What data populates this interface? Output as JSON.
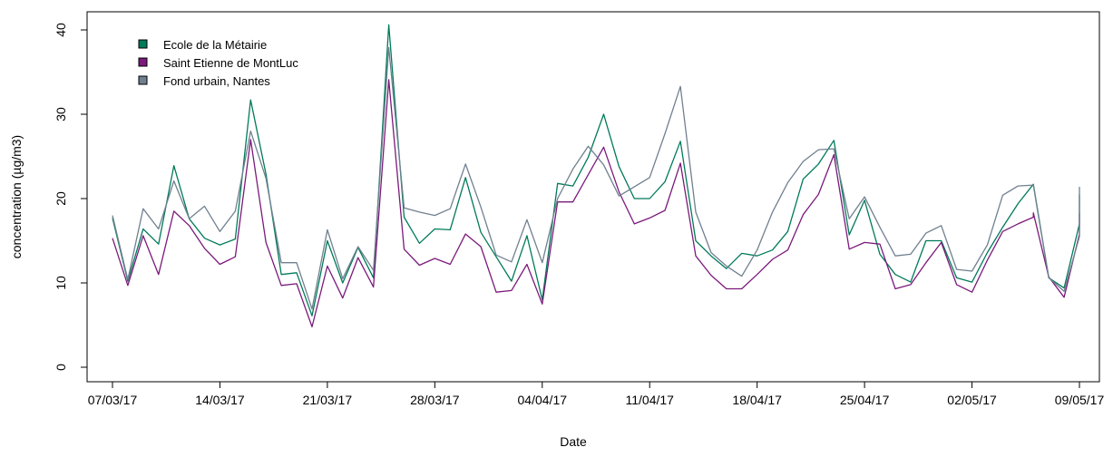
{
  "chart_data": {
    "type": "line",
    "xlabel": "Date",
    "ylabel": "concentration (µg/m3)",
    "x_start": "2017-03-07",
    "x_ticks": [
      "07/03/17",
      "14/03/17",
      "21/03/17",
      "28/03/17",
      "04/04/17",
      "11/04/17",
      "18/04/17",
      "25/04/17",
      "02/05/17",
      "09/05/17"
    ],
    "x_tick_dates": [
      "2017-03-07",
      "2017-03-14",
      "2017-03-21",
      "2017-03-28",
      "2017-04-04",
      "2017-04-11",
      "2017-04-18",
      "2017-04-25",
      "2017-05-02",
      "2017-05-09"
    ],
    "xlim": [
      "2017-03-07",
      "2017-05-09"
    ],
    "ylim": [
      0,
      40
    ],
    "y_ticks": [
      0,
      10,
      20,
      30,
      40
    ],
    "legend_position": "top-left",
    "grid": false,
    "series": [
      {
        "name": "Ecole de la Métairie",
        "color": "#007A5A",
        "values": [
          17.7,
          10.2,
          16.4,
          14.6,
          23.9,
          17.6,
          15.3,
          14.5,
          15.2,
          31.7,
          22.9,
          11.0,
          11.2,
          6.1,
          15.0,
          10.0,
          14.2,
          10.6,
          40.6,
          17.8,
          14.7,
          16.4,
          16.3,
          22.5,
          16.0,
          13.1,
          10.2,
          15.6,
          8.0,
          21.8,
          21.5,
          24.9,
          30.0,
          23.8,
          20.0,
          20.0,
          22.0,
          26.8,
          15.0,
          13.2,
          11.7,
          13.5,
          13.2,
          13.9,
          16.1,
          22.3,
          24.1,
          26.9,
          15.7,
          19.8,
          13.4,
          11.0,
          10.1,
          15.0,
          15.0,
          10.6,
          10.1,
          13.6,
          16.6,
          19.4,
          21.7,
          10.6,
          9.4,
          17.0,
          20.5
        ],
        "dates": [
          "2017-03-07",
          "2017-03-08",
          "2017-03-09",
          "2017-03-10",
          "2017-03-11",
          "2017-03-12",
          "2017-03-13",
          "2017-03-14",
          "2017-03-15",
          "2017-03-16",
          "2017-03-17",
          "2017-03-18",
          "2017-03-19",
          "2017-03-20",
          "2017-03-21",
          "2017-03-22",
          "2017-03-23",
          "2017-03-24",
          "2017-03-25",
          "2017-03-26",
          "2017-03-27",
          "2017-03-28",
          "2017-03-29",
          "2017-03-30",
          "2017-03-31",
          "2017-04-01",
          "2017-04-02",
          "2017-04-03",
          "2017-04-04",
          "2017-04-05",
          "2017-04-06",
          "2017-04-07",
          "2017-04-08",
          "2017-04-09",
          "2017-04-10",
          "2017-04-11",
          "2017-04-12",
          "2017-04-13",
          "2017-04-14",
          "2017-04-15",
          "2017-04-16",
          "2017-04-17",
          "2017-04-18",
          "2017-04-19",
          "2017-04-20",
          "2017-04-21",
          "2017-04-22",
          "2017-04-23",
          "2017-04-24",
          "2017-04-25",
          "2017-04-26",
          "2017-04-27",
          "2017-04-28",
          "2017-04-29",
          "2017-04-30",
          "2017-05-01",
          "2017-05-02",
          "2017-05-03",
          "2017-05-04",
          "2017-05-05",
          "2017-05-06",
          "2017-05-07",
          "2017-05-08",
          "2017-05-09",
          "2017-05-09"
        ]
      },
      {
        "name": "Saint Etienne de MontLuc",
        "color": "#7B1A7B",
        "values": [
          15.3,
          9.7,
          15.6,
          11.0,
          18.5,
          16.8,
          14.1,
          12.2,
          13.1,
          27.0,
          14.8,
          9.7,
          9.9,
          4.8,
          12.0,
          8.2,
          13.0,
          9.5,
          34.1,
          14.0,
          12.1,
          12.9,
          12.2,
          15.8,
          14.3,
          8.9,
          9.1,
          12.2,
          7.5,
          19.6,
          19.6,
          26.1,
          20.8,
          17.0,
          17.7,
          18.6,
          24.2,
          13.2,
          10.9,
          9.3,
          9.3,
          11.0,
          12.8,
          13.9,
          18.1,
          20.5,
          25.2,
          14.0,
          14.8,
          14.6,
          9.3,
          9.8,
          12.4,
          14.8,
          9.8,
          8.9,
          12.7,
          16.1,
          17.0,
          17.8,
          18.3,
          10.7,
          8.3,
          15.8,
          18.3
        ],
        "dates": [
          "2017-03-07",
          "2017-03-08",
          "2017-03-09",
          "2017-03-10",
          "2017-03-11",
          "2017-03-12",
          "2017-03-13",
          "2017-03-14",
          "2017-03-15",
          "2017-03-16",
          "2017-03-17",
          "2017-03-18",
          "2017-03-19",
          "2017-03-20",
          "2017-03-21",
          "2017-03-22",
          "2017-03-23",
          "2017-03-24",
          "2017-03-25",
          "2017-03-26",
          "2017-03-27",
          "2017-03-28",
          "2017-03-29",
          "2017-03-30",
          "2017-03-31",
          "2017-04-01",
          "2017-04-02",
          "2017-04-03",
          "2017-04-04",
          "2017-04-05",
          "2017-04-06",
          "2017-04-08",
          "2017-04-09",
          "2017-04-10",
          "2017-04-11",
          "2017-04-12",
          "2017-04-13",
          "2017-04-14",
          "2017-04-15",
          "2017-04-16",
          "2017-04-17",
          "2017-04-18",
          "2017-04-19",
          "2017-04-20",
          "2017-04-21",
          "2017-04-22",
          "2017-04-23",
          "2017-04-24",
          "2017-04-25",
          "2017-04-26",
          "2017-04-27",
          "2017-04-28",
          "2017-04-29",
          "2017-04-30",
          "2017-05-01",
          "2017-05-02",
          "2017-05-03",
          "2017-05-04",
          "2017-05-05",
          "2017-05-06",
          "2017-05-06",
          "2017-05-07",
          "2017-05-08",
          "2017-05-09",
          "2017-05-09"
        ]
      },
      {
        "name": "Fond urbain, Nantes",
        "color": "#708090",
        "values": [
          18.0,
          10.4,
          18.8,
          16.4,
          22.1,
          17.6,
          19.1,
          16.1,
          18.5,
          28.0,
          22.4,
          12.4,
          12.4,
          6.9,
          16.3,
          10.5,
          14.3,
          11.5,
          37.9,
          18.9,
          18.4,
          18.0,
          18.8,
          24.1,
          19.0,
          13.3,
          12.5,
          17.5,
          12.4,
          20.0,
          23.5,
          26.2,
          24.0,
          20.3,
          22.5,
          27.7,
          33.3,
          18.4,
          13.6,
          12.0,
          10.8,
          13.9,
          18.4,
          21.9,
          24.4,
          25.8,
          25.9,
          17.6,
          20.2,
          16.6,
          13.2,
          13.4,
          15.9,
          16.8,
          11.6,
          11.4,
          14.5,
          20.4,
          21.5,
          21.6,
          10.6,
          9.0,
          15.5,
          21.4
        ],
        "dates": [
          "2017-03-07",
          "2017-03-08",
          "2017-03-09",
          "2017-03-10",
          "2017-03-11",
          "2017-03-12",
          "2017-03-13",
          "2017-03-14",
          "2017-03-15",
          "2017-03-16",
          "2017-03-17",
          "2017-03-18",
          "2017-03-19",
          "2017-03-20",
          "2017-03-21",
          "2017-03-22",
          "2017-03-23",
          "2017-03-24",
          "2017-03-25",
          "2017-03-26",
          "2017-03-27",
          "2017-03-28",
          "2017-03-29",
          "2017-03-30",
          "2017-03-31",
          "2017-04-01",
          "2017-04-02",
          "2017-04-03",
          "2017-04-04",
          "2017-04-05",
          "2017-04-06",
          "2017-04-07",
          "2017-04-08",
          "2017-04-09",
          "2017-04-11",
          "2017-04-12",
          "2017-04-13",
          "2017-04-14",
          "2017-04-15",
          "2017-04-16",
          "2017-04-17",
          "2017-04-18",
          "2017-04-19",
          "2017-04-20",
          "2017-04-21",
          "2017-04-22",
          "2017-04-23",
          "2017-04-24",
          "2017-04-25",
          "2017-04-26",
          "2017-04-27",
          "2017-04-28",
          "2017-04-29",
          "2017-04-30",
          "2017-05-01",
          "2017-05-02",
          "2017-05-03",
          "2017-05-04",
          "2017-05-05",
          "2017-05-06",
          "2017-05-07",
          "2017-05-08",
          "2017-05-09",
          "2017-05-09"
        ]
      }
    ]
  }
}
